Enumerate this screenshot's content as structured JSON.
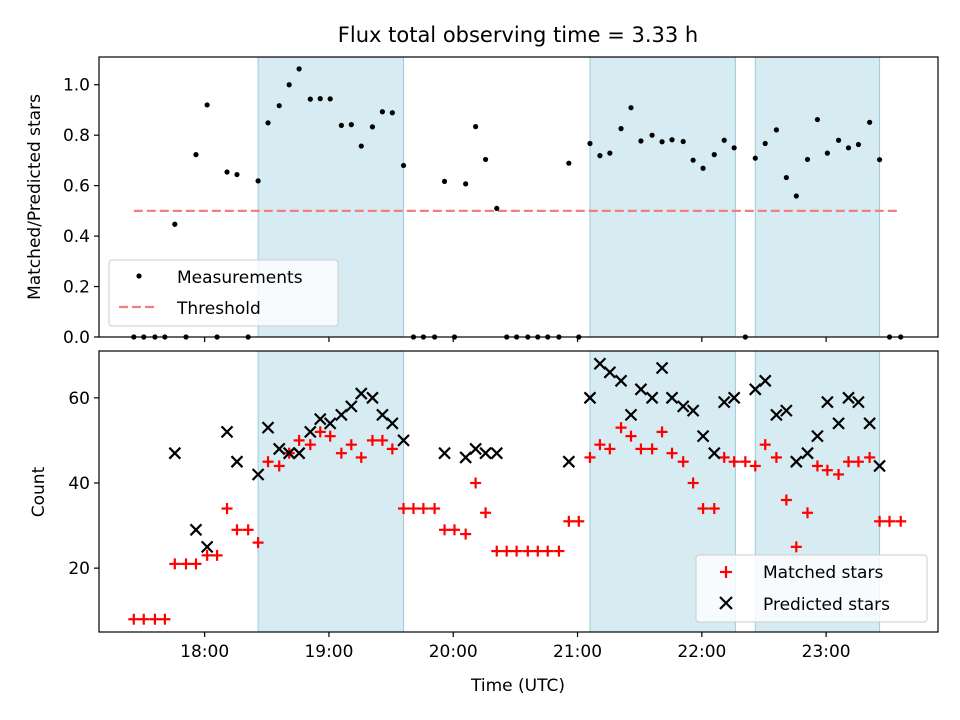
{
  "chart_data": [
    {
      "type": "scatter",
      "title": "Flux total observing time = 3.33 h",
      "xlabel": "",
      "ylabel": "Matched/Predicted stars",
      "xlim": [
        17.15,
        23.9
      ],
      "ylim": [
        0.0,
        1.11
      ],
      "yticks": [
        0.0,
        0.2,
        0.4,
        0.6,
        0.8,
        1.0
      ],
      "ytick_labels": [
        "0.0",
        "0.2",
        "0.4",
        "0.6",
        "0.8",
        "1.0"
      ],
      "xticks": [
        18,
        19,
        20,
        21,
        22,
        23
      ],
      "shaded_intervals": [
        [
          18.43,
          19.6
        ],
        [
          21.1,
          22.27
        ],
        [
          22.43,
          23.43
        ]
      ],
      "threshold": {
        "name": "Threshold",
        "value": 0.5,
        "x_start": 17.43,
        "x_end": 23.6,
        "color": "#f08080"
      },
      "series": [
        {
          "name": "Measurements",
          "marker": "dot",
          "color": "#000000",
          "x": [
            17.43,
            17.51,
            17.6,
            17.68,
            17.76,
            17.85,
            17.93,
            18.02,
            18.1,
            18.18,
            18.26,
            18.35,
            18.43,
            18.51,
            18.6,
            18.68,
            18.76,
            18.85,
            18.93,
            19.01,
            19.1,
            19.18,
            19.26,
            19.35,
            19.43,
            19.51,
            19.6,
            19.68,
            19.76,
            19.85,
            19.93,
            20.01,
            20.1,
            20.18,
            20.26,
            20.35,
            20.43,
            20.51,
            20.6,
            20.68,
            20.76,
            20.85,
            20.93,
            21.01,
            21.1,
            21.18,
            21.26,
            21.35,
            21.43,
            21.51,
            21.6,
            21.68,
            21.76,
            21.85,
            21.93,
            22.01,
            22.1,
            22.18,
            22.26,
            22.35,
            22.43,
            22.51,
            22.6,
            22.68,
            22.76,
            22.85,
            22.93,
            23.01,
            23.1,
            23.18,
            23.26,
            23.35,
            23.43,
            23.51,
            23.6
          ],
          "y": [
            0.0,
            0.0,
            0.0,
            0.0,
            0.447,
            0.0,
            0.723,
            0.92,
            0.0,
            0.654,
            0.644,
            0.0,
            0.619,
            0.849,
            0.917,
            1.0,
            1.063,
            0.943,
            0.945,
            0.944,
            0.839,
            0.842,
            0.757,
            0.833,
            0.893,
            0.889,
            0.68,
            0.0,
            0.0,
            0.0,
            0.617,
            0.0,
            0.607,
            0.834,
            0.704,
            0.51,
            0.0,
            0.0,
            0.0,
            0.0,
            0.0,
            0.0,
            0.689,
            0.0,
            0.767,
            0.719,
            0.729,
            0.826,
            0.909,
            0.777,
            0.8,
            0.774,
            0.782,
            0.775,
            0.701,
            0.669,
            0.723,
            0.78,
            0.75,
            0.0,
            0.709,
            0.767,
            0.821,
            0.632,
            0.559,
            0.704,
            0.862,
            0.729,
            0.78,
            0.75,
            0.763,
            0.851,
            0.703,
            0.0,
            0.0
          ]
        }
      ],
      "legend": {
        "location": "lower-left",
        "entries": [
          "Measurements",
          "Threshold"
        ]
      }
    },
    {
      "type": "scatter",
      "title": "",
      "xlabel": "Time (UTC)",
      "ylabel": "Count",
      "xlim": [
        17.15,
        23.9
      ],
      "ylim": [
        5.0,
        71.0
      ],
      "yticks": [
        20,
        40,
        60
      ],
      "ytick_labels": [
        "20",
        "40",
        "60"
      ],
      "xticks": [
        18,
        19,
        20,
        21,
        22,
        23
      ],
      "xtick_labels": [
        "18:00",
        "19:00",
        "20:00",
        "21:00",
        "22:00",
        "23:00"
      ],
      "shaded_intervals": [
        [
          18.43,
          19.6
        ],
        [
          21.1,
          22.27
        ],
        [
          22.43,
          23.43
        ]
      ],
      "series": [
        {
          "name": "Matched stars",
          "marker": "plus",
          "color": "#ff0000",
          "x": [
            17.43,
            17.51,
            17.6,
            17.68,
            17.76,
            17.85,
            17.93,
            18.02,
            18.1,
            18.18,
            18.26,
            18.35,
            18.43,
            18.51,
            18.6,
            18.68,
            18.76,
            18.85,
            18.93,
            19.01,
            19.1,
            19.18,
            19.26,
            19.35,
            19.43,
            19.51,
            19.6,
            19.68,
            19.76,
            19.85,
            19.93,
            20.01,
            20.1,
            20.18,
            20.26,
            20.35,
            20.43,
            20.51,
            20.6,
            20.68,
            20.76,
            20.85,
            20.93,
            21.01,
            21.1,
            21.18,
            21.26,
            21.35,
            21.43,
            21.51,
            21.6,
            21.68,
            21.76,
            21.85,
            21.93,
            22.01,
            22.1,
            22.18,
            22.26,
            22.35,
            22.43,
            22.51,
            22.6,
            22.68,
            22.76,
            22.85,
            22.93,
            23.01,
            23.1,
            23.18,
            23.26,
            23.35,
            23.43,
            23.51,
            23.6
          ],
          "y": [
            8,
            8,
            8,
            8,
            21,
            21,
            21,
            23,
            23,
            34,
            29,
            29,
            26,
            45,
            44,
            47,
            50,
            49,
            52,
            51,
            47,
            49,
            46,
            50,
            50,
            48,
            34,
            34,
            34,
            34,
            29,
            29,
            28,
            40,
            33,
            24,
            24,
            24,
            24,
            24,
            24,
            24,
            31,
            31,
            46,
            49,
            48,
            53,
            51,
            48,
            48,
            52,
            47,
            45,
            40,
            34,
            34,
            46,
            45,
            45,
            44,
            49,
            46,
            36,
            25,
            33,
            44,
            43,
            42,
            45,
            45,
            46,
            31,
            31,
            31
          ]
        },
        {
          "name": "Predicted stars",
          "marker": "x",
          "color": "#000000",
          "x": [
            17.76,
            17.93,
            18.02,
            18.18,
            18.26,
            18.43,
            18.51,
            18.6,
            18.68,
            18.76,
            18.85,
            18.93,
            19.01,
            19.1,
            19.18,
            19.26,
            19.35,
            19.43,
            19.51,
            19.6,
            19.93,
            20.1,
            20.18,
            20.26,
            20.35,
            20.93,
            21.1,
            21.18,
            21.26,
            21.35,
            21.43,
            21.51,
            21.6,
            21.68,
            21.76,
            21.85,
            21.93,
            22.01,
            22.1,
            22.18,
            22.26,
            22.43,
            22.51,
            22.6,
            22.68,
            22.76,
            22.85,
            22.93,
            23.01,
            23.1,
            23.18,
            23.26,
            23.35,
            23.43
          ],
          "y": [
            47,
            29,
            25,
            52,
            45,
            42,
            53,
            48,
            47,
            47,
            52,
            55,
            54,
            56,
            58,
            61,
            60,
            56,
            54,
            50,
            47,
            46,
            48,
            47,
            47,
            45,
            60,
            68,
            66,
            64,
            56,
            62,
            60,
            67,
            60,
            58,
            57,
            51,
            47,
            59,
            60,
            62,
            64,
            56,
            57,
            45,
            47,
            51,
            59,
            54,
            60,
            59,
            54,
            44
          ]
        }
      ],
      "legend": {
        "location": "lower-right",
        "entries": [
          "Matched stars",
          "Predicted stars"
        ]
      }
    }
  ]
}
